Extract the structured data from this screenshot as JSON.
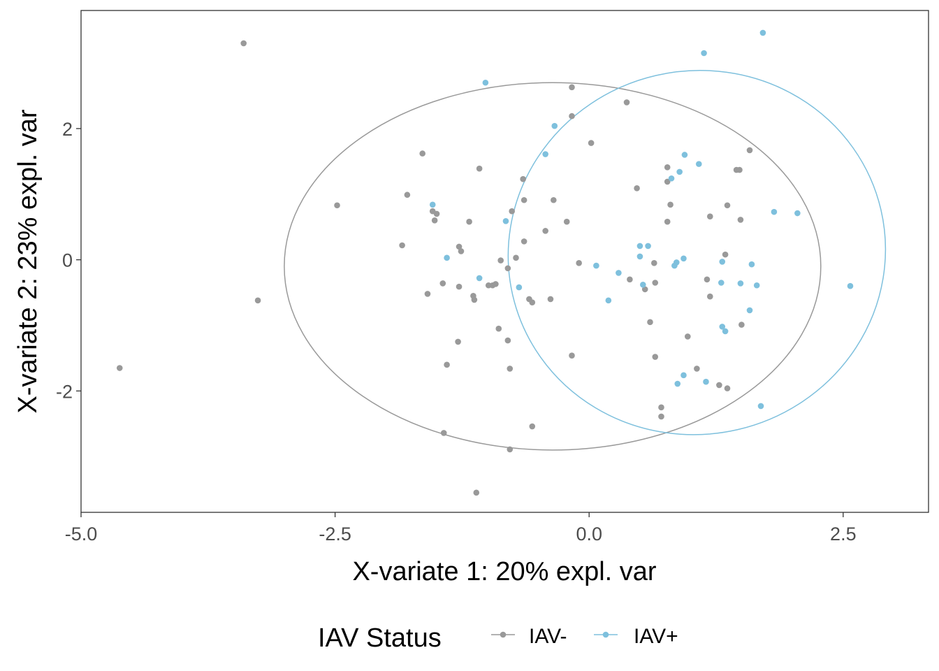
{
  "chart_data": {
    "type": "scatter",
    "xlabel": "X-variate 1: 20% expl. var",
    "ylabel": "X-variate 2: 23% expl. var",
    "xlim": [
      -5.0,
      3.34
    ],
    "ylim": [
      -3.85,
      3.8
    ],
    "x_ticks": [
      -5.0,
      -2.5,
      0.0,
      2.5
    ],
    "x_tick_labels": [
      "-5.0",
      "-2.5",
      "0.0",
      "2.5"
    ],
    "y_ticks": [
      -2,
      0,
      2
    ],
    "y_tick_labels": [
      "-2",
      "0",
      "2"
    ],
    "grid": false,
    "legend": {
      "title": "IAV Status",
      "position": "bottom",
      "entries": [
        "IAV-",
        "IAV+"
      ]
    },
    "series": [
      {
        "name": "IAV-",
        "color": "#999999",
        "ellipse": {
          "cx": -0.36,
          "cy": -0.1,
          "rx": 2.64,
          "ry": 2.8
        },
        "points": [
          [
            -3.4,
            3.3
          ],
          [
            -4.62,
            -1.65
          ],
          [
            -3.26,
            -0.62
          ],
          [
            -2.48,
            0.83
          ],
          [
            -1.84,
            0.22
          ],
          [
            -1.79,
            0.99
          ],
          [
            -1.64,
            1.62
          ],
          [
            -1.59,
            -0.52
          ],
          [
            -1.54,
            0.74
          ],
          [
            -1.52,
            0.6
          ],
          [
            -1.5,
            0.7
          ],
          [
            -1.44,
            -0.36
          ],
          [
            -1.43,
            -2.64
          ],
          [
            -1.4,
            -1.6
          ],
          [
            -1.29,
            -1.25
          ],
          [
            -1.28,
            0.2
          ],
          [
            -1.28,
            -0.41
          ],
          [
            -1.26,
            0.13
          ],
          [
            -1.18,
            0.58
          ],
          [
            -1.14,
            -0.55
          ],
          [
            -1.13,
            -0.61
          ],
          [
            -1.11,
            -3.55
          ],
          [
            -1.08,
            1.39
          ],
          [
            -0.99,
            -0.39
          ],
          [
            -0.95,
            -0.39
          ],
          [
            -0.92,
            -0.37
          ],
          [
            -0.89,
            -1.05
          ],
          [
            -0.87,
            -0.01
          ],
          [
            -0.8,
            -0.13
          ],
          [
            -0.8,
            -1.23
          ],
          [
            -0.78,
            -1.66
          ],
          [
            -0.78,
            -2.89
          ],
          [
            -0.76,
            0.74
          ],
          [
            -0.72,
            0.03
          ],
          [
            -0.65,
            1.23
          ],
          [
            -0.64,
            0.91
          ],
          [
            -0.64,
            0.28
          ],
          [
            -0.59,
            -0.6
          ],
          [
            -0.56,
            -0.65
          ],
          [
            -0.56,
            -2.54
          ],
          [
            -0.43,
            0.44
          ],
          [
            -0.38,
            -0.6
          ],
          [
            -0.35,
            0.91
          ],
          [
            -0.22,
            0.58
          ],
          [
            -0.17,
            2.63
          ],
          [
            -0.17,
            2.19
          ],
          [
            -0.17,
            -1.46
          ],
          [
            -0.1,
            -0.05
          ],
          [
            0.02,
            1.78
          ],
          [
            0.37,
            2.4
          ],
          [
            0.4,
            -0.3
          ],
          [
            0.47,
            1.09
          ],
          [
            0.55,
            -0.45
          ],
          [
            0.6,
            -0.95
          ],
          [
            0.64,
            -0.05
          ],
          [
            0.65,
            -0.35
          ],
          [
            0.65,
            -1.48
          ],
          [
            0.71,
            -2.25
          ],
          [
            0.71,
            -2.39
          ],
          [
            0.77,
            1.41
          ],
          [
            0.77,
            1.19
          ],
          [
            0.77,
            0.58
          ],
          [
            0.8,
            0.84
          ],
          [
            0.97,
            -1.17
          ],
          [
            1.06,
            -1.66
          ],
          [
            1.16,
            -0.3
          ],
          [
            1.19,
            -0.56
          ],
          [
            1.19,
            0.66
          ],
          [
            1.28,
            -1.91
          ],
          [
            1.34,
            0.08
          ],
          [
            1.36,
            0.83
          ],
          [
            1.36,
            -1.96
          ],
          [
            1.45,
            1.37
          ],
          [
            1.48,
            1.37
          ],
          [
            1.49,
            0.61
          ],
          [
            1.5,
            -0.99
          ],
          [
            1.58,
            1.67
          ]
        ]
      },
      {
        "name": "IAV+",
        "color": "#7ec0dd",
        "ellipse": {
          "cx": 1.06,
          "cy": 0.11,
          "rx": 1.86,
          "ry": 2.77,
          "angle": -13
        },
        "points": [
          [
            1.71,
            3.46
          ],
          [
            1.13,
            3.15
          ],
          [
            -1.02,
            2.7
          ],
          [
            -0.34,
            2.04
          ],
          [
            -0.43,
            1.61
          ],
          [
            0.94,
            1.6
          ],
          [
            1.08,
            1.46
          ],
          [
            0.89,
            1.34
          ],
          [
            0.81,
            1.24
          ],
          [
            1.82,
            0.73
          ],
          [
            2.05,
            0.71
          ],
          [
            -1.54,
            0.84
          ],
          [
            -0.82,
            0.59
          ],
          [
            0.5,
            0.21
          ],
          [
            0.58,
            0.21
          ],
          [
            0.5,
            0.05
          ],
          [
            0.93,
            0.02
          ],
          [
            0.86,
            -0.04
          ],
          [
            0.84,
            -0.09
          ],
          [
            1.31,
            -0.03
          ],
          [
            1.6,
            -0.07
          ],
          [
            0.07,
            -0.09
          ],
          [
            -1.4,
            0.03
          ],
          [
            0.29,
            -0.2
          ],
          [
            -1.08,
            -0.28
          ],
          [
            -0.69,
            -0.42
          ],
          [
            0.53,
            -0.38
          ],
          [
            1.3,
            -0.35
          ],
          [
            1.49,
            -0.36
          ],
          [
            1.65,
            -0.39
          ],
          [
            2.57,
            -0.4
          ],
          [
            0.19,
            -0.62
          ],
          [
            1.58,
            -0.77
          ],
          [
            1.31,
            -1.02
          ],
          [
            1.34,
            -1.09
          ],
          [
            0.93,
            -1.76
          ],
          [
            1.15,
            -1.86
          ],
          [
            0.87,
            -1.89
          ],
          [
            1.69,
            -2.23
          ]
        ]
      }
    ]
  }
}
